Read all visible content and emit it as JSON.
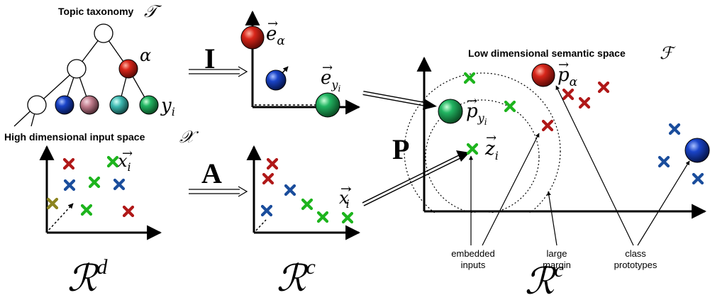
{
  "taxonomy": {
    "title": "Topic taxonomy",
    "title_symbol": "𝒯",
    "alpha": "α",
    "y_label": "y",
    "y_sub": "i"
  },
  "input_space": {
    "title": "High dimensional input space",
    "symbol": "𝒳",
    "x_label": "x",
    "x_sub": "i",
    "space_main": "ℛ",
    "space_sup": "d"
  },
  "mapping_I": {
    "matrix": "I",
    "e_alpha": "e",
    "e_alpha_sub": "α",
    "e_y": "e",
    "e_y_sub": "y",
    "e_y_subsub": "i"
  },
  "mapping_A": {
    "matrix": "A",
    "x_prime": "x",
    "x_prime_sup": "′",
    "x_prime_sub": "i",
    "space_main": "ℛ",
    "space_sup": "c"
  },
  "semantic_space": {
    "title": "Low dimensional semantic space",
    "symbol": "ℱ",
    "matrix": "P",
    "p_alpha": "p",
    "p_alpha_sub": "α",
    "p_y": "p",
    "p_y_sub": "y",
    "p_y_subsub": "i",
    "z_label": "z",
    "z_sub": "i",
    "annot_embedded_1": "embedded",
    "annot_embedded_2": "inputs",
    "annot_margin_1": "large",
    "annot_margin_2": "margin",
    "annot_proto_1": "class",
    "annot_proto_2": "prototypes",
    "space_main": "ℛ",
    "space_sup": "c"
  },
  "colors": {
    "red": "#b01818",
    "green": "#1db41d",
    "blue": "#1a4d9c",
    "olive": "#8c8420",
    "sphere_red": "#d8261a",
    "sphere_green": "#20b060",
    "sphere_blue": "#1a4acc",
    "sphere_pink": "#c07c8c",
    "sphere_teal": "#3cb8b0"
  }
}
